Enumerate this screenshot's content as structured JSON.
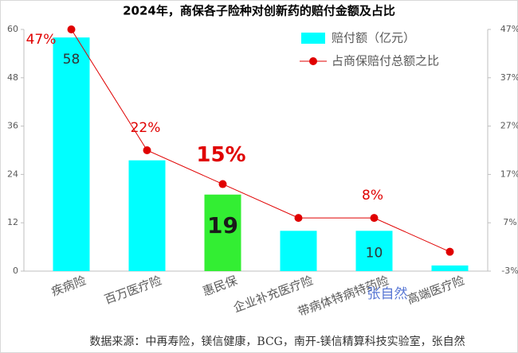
{
  "chart_data": {
    "type": "bar-line",
    "title": "2024年，商保各子险种对创新药的赔付金额及占比",
    "categories": [
      "疾病险",
      "百万医疗险",
      "惠民保",
      "企业补充医疗险",
      "带病体特病特药险",
      "高端医疗险"
    ],
    "series": [
      {
        "name": "赔付额（亿元）",
        "type": "bar",
        "color": "#00ffff",
        "colors": [
          "#00ffff",
          "#00ffff",
          "#33ee33",
          "#00ffff",
          "#00ffff",
          "#00ffff"
        ],
        "values": [
          58,
          27.5,
          19,
          10,
          10,
          1.4
        ],
        "value_labels": [
          "58",
          null,
          "19",
          null,
          "10",
          null
        ]
      },
      {
        "name": "占商保赔付总额之比",
        "type": "line",
        "axis": "y2",
        "color": "#e00000",
        "values": [
          47,
          22,
          15,
          8,
          8,
          1
        ],
        "value_labels": [
          "47%",
          "22%",
          "15%",
          null,
          "8%",
          null
        ]
      }
    ],
    "ylim": [
      0,
      60
    ],
    "yticks": [
      0,
      12,
      24,
      36,
      48,
      60
    ],
    "y2lim": [
      -3,
      47
    ],
    "y2ticks": [
      {
        "value": -3,
        "label": "-3%"
      },
      {
        "value": 7,
        "label": "7%"
      },
      {
        "value": 17,
        "label": "17%"
      },
      {
        "value": 27,
        "label": "27%"
      },
      {
        "value": 37,
        "label": "37%"
      },
      {
        "value": 47,
        "label": "47%"
      }
    ],
    "watermark": "张自然",
    "source": "数据来源：中再寿险，镁信健康，BCG，南开-镁信精算科技实验室，张自然"
  }
}
